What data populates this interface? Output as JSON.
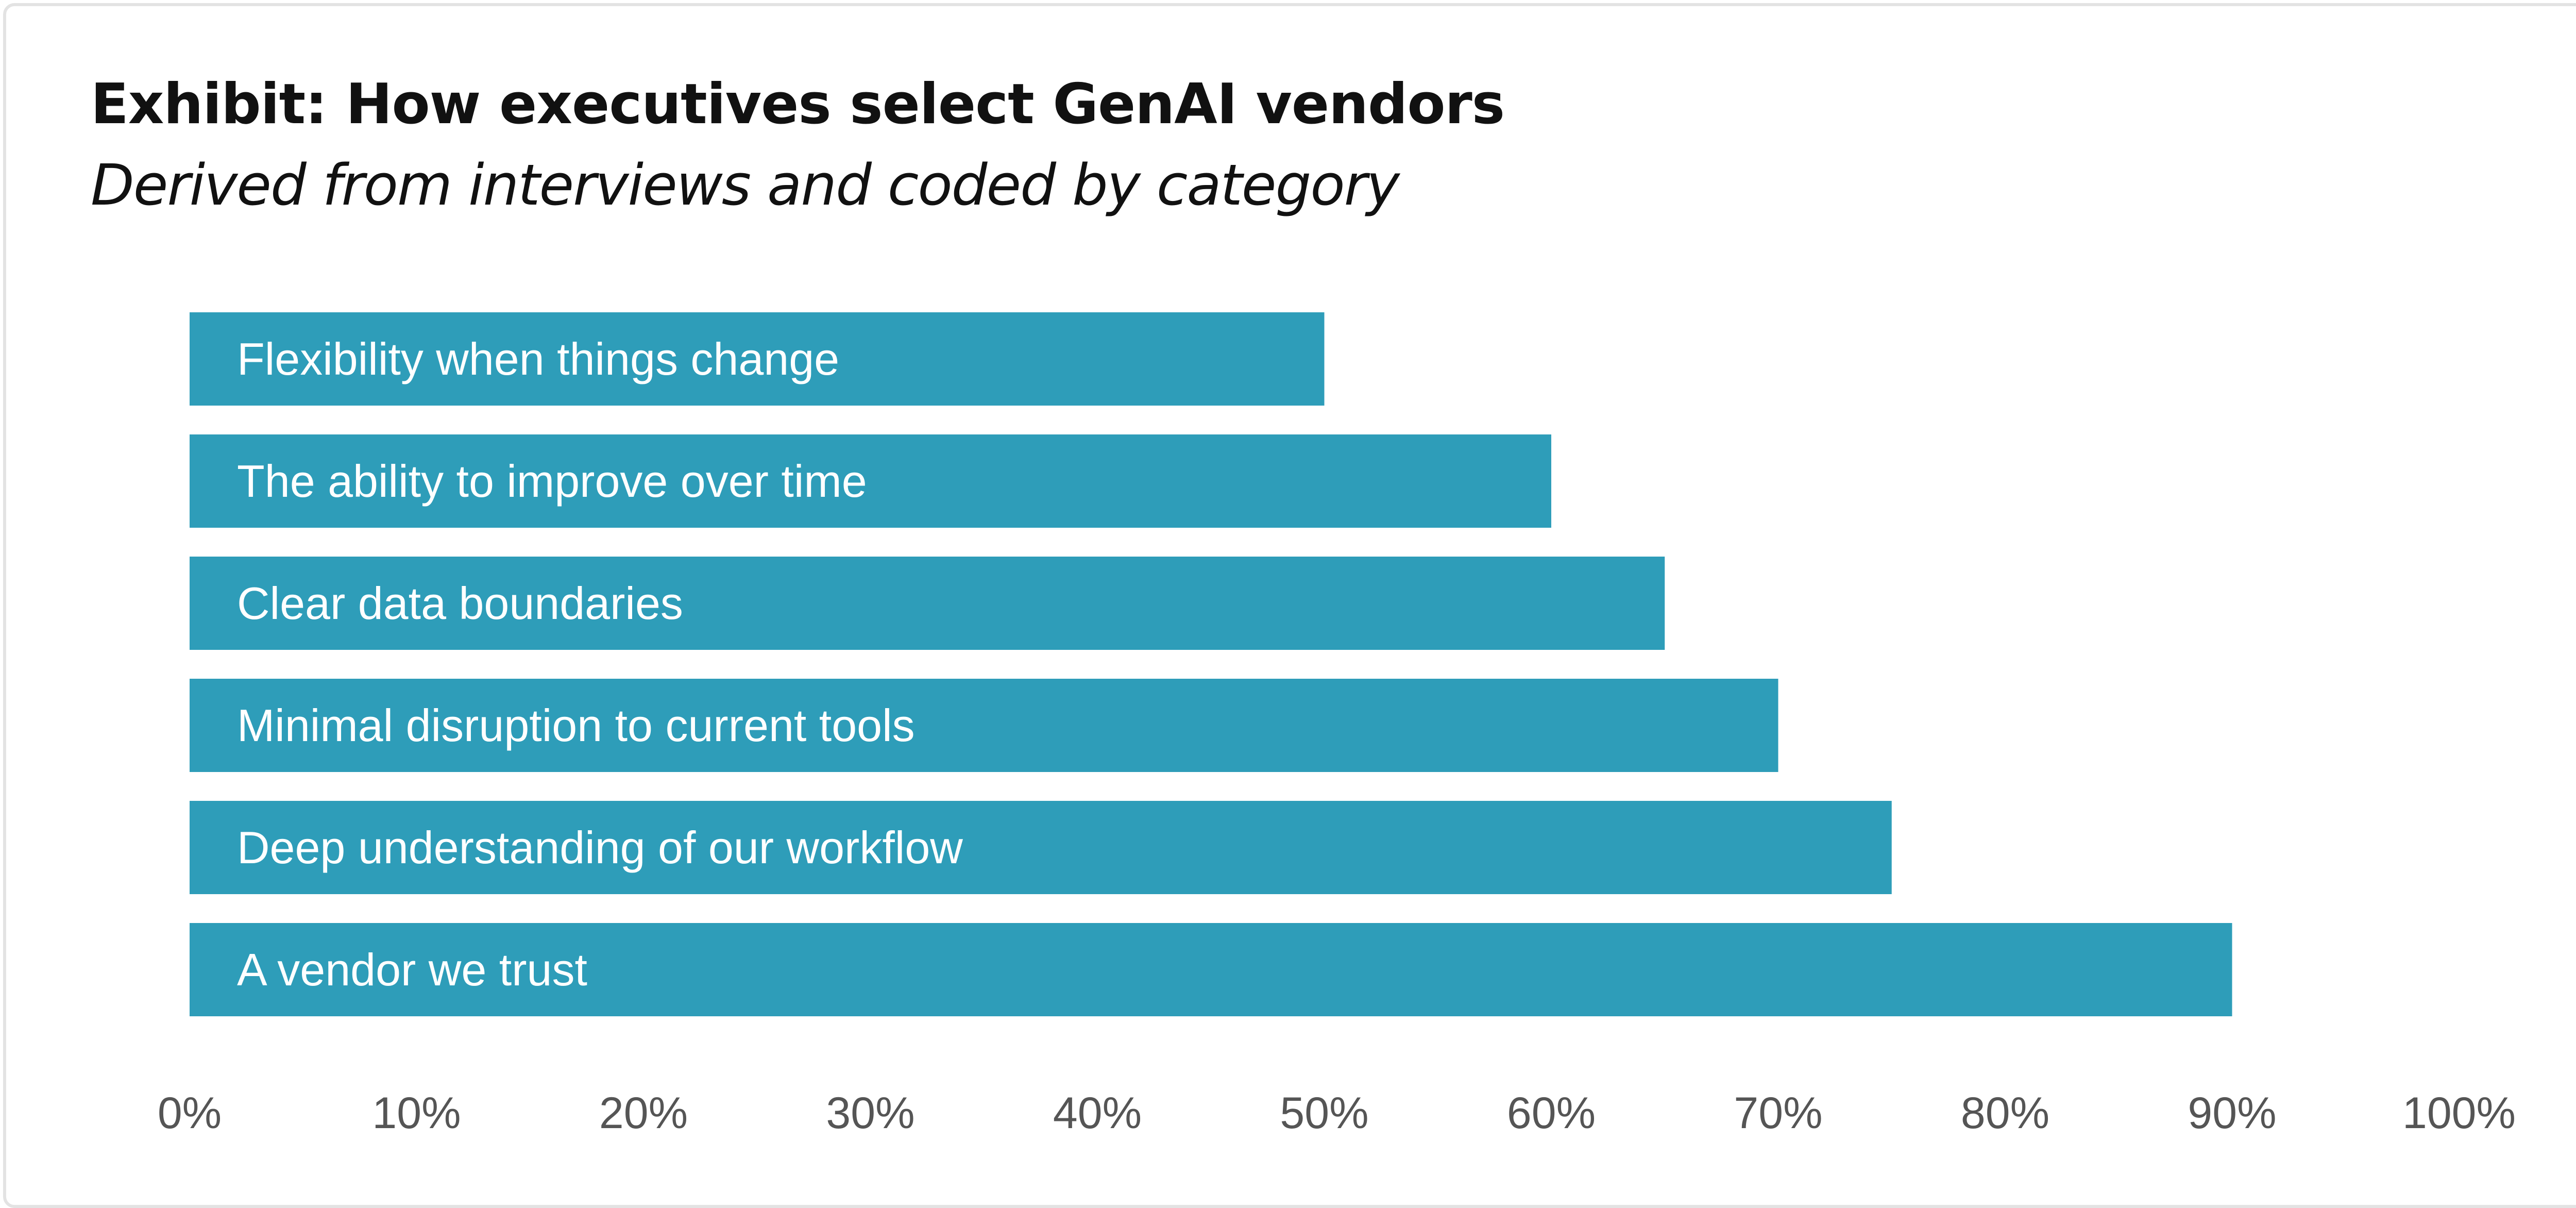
{
  "title": "Exhibit: How executives select GenAI vendors",
  "subtitle": "Derived from interviews and coded by category",
  "colors": {
    "bar": "#2e9db9",
    "tick_text": "#555555",
    "title_text": "#111111",
    "frame_border": "#e3e3e3"
  },
  "chart_data": {
    "type": "bar",
    "orientation": "horizontal",
    "title": "Exhibit: How executives select GenAI vendors",
    "subtitle": "Derived from interviews and coded by category",
    "categories": [
      "Flexibility when things change",
      "The ability to improve over time",
      "Clear data boundaries",
      "Minimal disruption to current tools",
      "Deep understanding of our workflow",
      "A vendor we trust"
    ],
    "values": [
      50,
      60,
      65,
      70,
      75,
      90
    ],
    "value_unit": "%",
    "xlim": [
      0,
      100
    ],
    "x_ticks": [
      "0%",
      "10%",
      "20%",
      "30%",
      "40%",
      "50%",
      "60%",
      "70%",
      "80%",
      "90%",
      "100%"
    ],
    "xlabel": "",
    "ylabel": "",
    "grid": false,
    "legend": "none",
    "labels_inside_bars": true
  }
}
